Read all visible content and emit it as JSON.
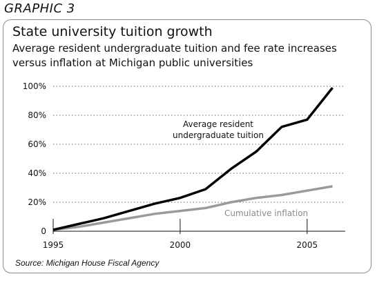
{
  "graphic_label": "GRAPHIC 3",
  "source": "Source: Michigan House Fiscal Agency",
  "chart_data": {
    "type": "line",
    "title": "State university tuition growth",
    "subtitle": "Average resident undergraduate tuition and fee rate increases versus inflation at Michigan public universities",
    "xlabel": "",
    "ylabel": "",
    "x": [
      1995,
      1996,
      1997,
      1998,
      1999,
      2000,
      2001,
      2002,
      2003,
      2004,
      2005,
      2006
    ],
    "xlim": [
      1995,
      2006.5
    ],
    "ylim": [
      0,
      100
    ],
    "x_ticks": [
      1995,
      2000,
      2005
    ],
    "x_tick_labels": [
      "1995",
      "2000",
      "2005"
    ],
    "y_ticks": [
      0,
      20,
      40,
      60,
      80,
      100
    ],
    "y_tick_labels": [
      "0",
      "20%",
      "40%",
      "60%",
      "80%",
      "100%"
    ],
    "grid": "horizontal dotted",
    "series": [
      {
        "name": "Average resident undergraduate tuition",
        "color": "#000000",
        "values": [
          1,
          5,
          9,
          14,
          19,
          23,
          29,
          43,
          55,
          72,
          77,
          99
        ]
      },
      {
        "name": "Cumulative inflation",
        "color": "#9a9a9a",
        "values": [
          1,
          3,
          6,
          9,
          12,
          14,
          16,
          20,
          23,
          25,
          28,
          31
        ]
      }
    ],
    "annotations": [
      {
        "text": "Average resident",
        "series": 0
      },
      {
        "text": "undergraduate tuition",
        "series": 0
      },
      {
        "text": "Cumulative inflation",
        "series": 1
      }
    ]
  }
}
